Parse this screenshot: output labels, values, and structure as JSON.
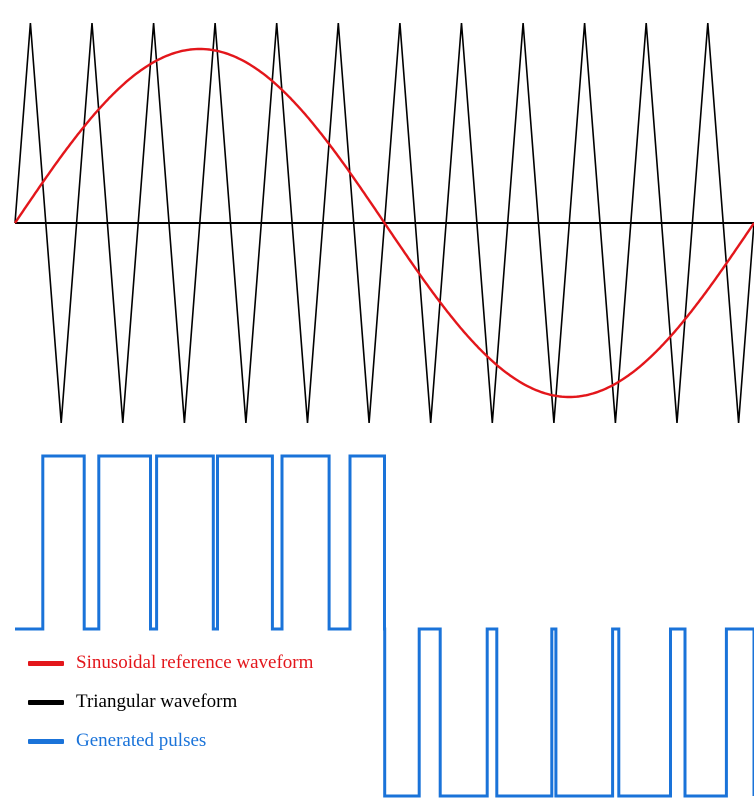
{
  "chart_data": {
    "type": "line",
    "description_note": "",
    "reference": {
      "label": "Sinusoidal reference waveform",
      "color": "#e3161b",
      "cycles": 1,
      "amplitude": 0.87
    },
    "carrier": {
      "label": "Triangular waveform",
      "color": "#000000",
      "peaks_per_reference_cycle": 12,
      "amplitude": 1.0
    },
    "pulses": {
      "label": "Generated pulses",
      "color": "#1a73d9"
    },
    "legend_placement": "bottom-left",
    "grid": false
  }
}
